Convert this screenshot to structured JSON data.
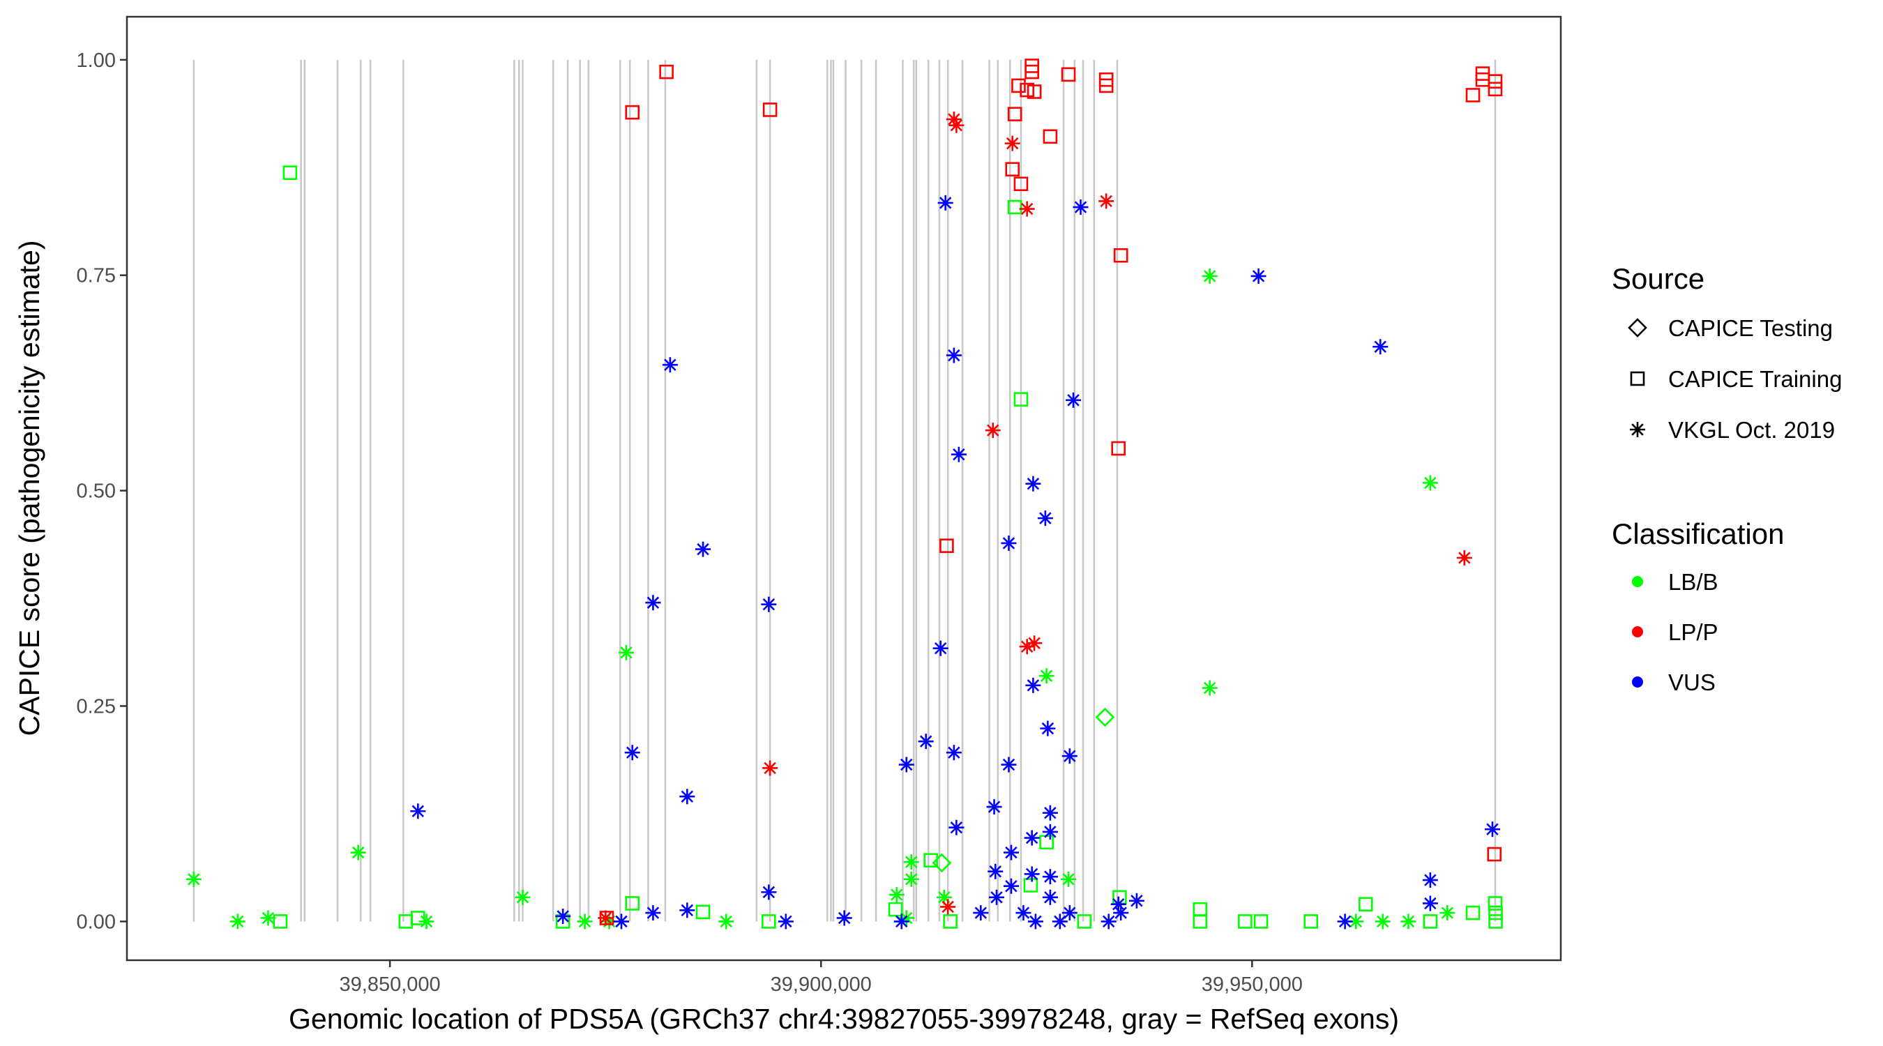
{
  "chart_data": {
    "type": "scatter",
    "xlabel": "Genomic location of PDS5A (GRCh37 chr4:39827055-39978248, gray = RefSeq exons)",
    "ylabel": "CAPICE score (pathogenicity estimate)",
    "xlim": [
      39819495,
      39985808
    ],
    "ylim": [
      -0.045,
      1.05
    ],
    "x_ticks": [
      39850000,
      39900000,
      39950000
    ],
    "x_tick_labels": [
      "39,850,000",
      "39,900,000",
      "39,950,000"
    ],
    "y_ticks": [
      0,
      0.25,
      0.5,
      0.75,
      1.0
    ],
    "y_tick_labels": [
      "0.00",
      "0.25",
      "0.50",
      "0.75",
      "1.00"
    ],
    "grid": false,
    "legend_position": "right",
    "legend": {
      "source_title": "Source",
      "sources": [
        {
          "key": "T",
          "label": "CAPICE Testing",
          "shape": "diamond"
        },
        {
          "key": "S",
          "label": "CAPICE Training",
          "shape": "square"
        },
        {
          "key": "V",
          "label": "VKGL Oct. 2019",
          "shape": "asterisk"
        }
      ],
      "class_title": "Classification",
      "classes": [
        {
          "key": "LB/B",
          "label": "LB/B",
          "color": "#00FF00"
        },
        {
          "key": "LP/P",
          "label": "LP/P",
          "color": "#FF0000"
        },
        {
          "key": "VUS",
          "label": "VUS",
          "color": "#0000FF"
        }
      ]
    },
    "exon_color": "#C8C8C8",
    "exons": [
      39827251,
      39839685,
      39840109,
      39843926,
      39846609,
      39847739,
      39851554,
      39864413,
      39864978,
      39865402,
      39868934,
      39870630,
      39872043,
      39873032,
      39876706,
      39877836,
      39879956,
      39881934,
      39892531,
      39894086,
      39900727,
      39901151,
      39901434,
      39902846,
      39904683,
      39906379,
      39909487,
      39910759,
      39911042,
      39912455,
      39913727,
      39914716,
      39916411,
      39919520,
      39920509,
      39921922,
      39923193,
      39928139,
      39929411,
      39930400,
      39931671,
      39934356,
      39978200
    ],
    "point_fields": [
      "position",
      "score",
      "source",
      "classification"
    ],
    "points": [
      [
        39827251,
        0.049,
        "V",
        "LB/B"
      ],
      [
        39832338,
        0.0,
        "V",
        "LB/B"
      ],
      [
        39835870,
        0.004,
        "V",
        "LB/B"
      ],
      [
        39837283,
        0.0,
        "S",
        "LB/B"
      ],
      [
        39838413,
        0.869,
        "S",
        "LB/B"
      ],
      [
        39846326,
        0.08,
        "V",
        "LB/B"
      ],
      [
        39851837,
        0.0,
        "S",
        "LB/B"
      ],
      [
        39853250,
        0.004,
        "S",
        "LB/B"
      ],
      [
        39854239,
        0.0,
        "V",
        "LB/B"
      ],
      [
        39865402,
        0.028,
        "V",
        "LB/B"
      ],
      [
        39870065,
        0.0,
        "S",
        "LB/B"
      ],
      [
        39872608,
        0.0,
        "V",
        "LB/B"
      ],
      [
        39875434,
        0.0,
        "V",
        "LB/B"
      ],
      [
        39877412,
        0.312,
        "V",
        "LB/B"
      ],
      [
        39878119,
        0.021,
        "S",
        "LB/B"
      ],
      [
        39886314,
        0.011,
        "S",
        "LB/B"
      ],
      [
        39888999,
        0.0,
        "V",
        "LB/B"
      ],
      [
        39893944,
        0.0,
        "S",
        "LB/B"
      ],
      [
        39908640,
        0.014,
        "S",
        "LB/B"
      ],
      [
        39908781,
        0.031,
        "V",
        "LB/B"
      ],
      [
        39909912,
        0.004,
        "V",
        "LB/B"
      ],
      [
        39910477,
        0.069,
        "V",
        "LB/B"
      ],
      [
        39910477,
        0.049,
        "V",
        "LB/B"
      ],
      [
        39912737,
        0.071,
        "S",
        "LB/B"
      ],
      [
        39914009,
        0.068,
        "T",
        "LB/B"
      ],
      [
        39914292,
        0.028,
        "V",
        "LB/B"
      ],
      [
        39914998,
        0.0,
        "S",
        "LB/B"
      ],
      [
        39922487,
        0.829,
        "S",
        "LB/B"
      ],
      [
        39923193,
        0.606,
        "S",
        "LB/B"
      ],
      [
        39924324,
        0.042,
        "S",
        "LB/B"
      ],
      [
        39926160,
        0.285,
        "V",
        "LB/B"
      ],
      [
        39926160,
        0.092,
        "S",
        "LB/B"
      ],
      [
        39928704,
        0.049,
        "V",
        "LB/B"
      ],
      [
        39930541,
        0.0,
        "S",
        "LB/B"
      ],
      [
        39932943,
        0.237,
        "T",
        "LB/B"
      ],
      [
        39934638,
        0.028,
        "S",
        "LB/B"
      ],
      [
        39943965,
        0.014,
        "S",
        "LB/B"
      ],
      [
        39943965,
        0.0,
        "S",
        "LB/B"
      ],
      [
        39945095,
        0.749,
        "V",
        "LB/B"
      ],
      [
        39945095,
        0.271,
        "V",
        "LB/B"
      ],
      [
        39949193,
        0.0,
        "S",
        "LB/B"
      ],
      [
        39951030,
        0.0,
        "S",
        "LB/B"
      ],
      [
        39956823,
        0.0,
        "S",
        "LB/B"
      ],
      [
        39962051,
        0.0,
        "V",
        "LB/B"
      ],
      [
        39963181,
        0.02,
        "S",
        "LB/B"
      ],
      [
        39965160,
        0.0,
        "V",
        "LB/B"
      ],
      [
        39968127,
        0.0,
        "V",
        "LB/B"
      ],
      [
        39970670,
        0.509,
        "V",
        "LB/B"
      ],
      [
        39970670,
        0.0,
        "S",
        "LB/B"
      ],
      [
        39972648,
        0.01,
        "V",
        "LB/B"
      ],
      [
        39975616,
        0.01,
        "S",
        "LB/B"
      ],
      [
        39978200,
        0.021,
        "S",
        "LB/B"
      ],
      [
        39978248,
        0.01,
        "S",
        "LB/B"
      ],
      [
        39978248,
        0.0,
        "S",
        "LB/B"
      ],
      [
        39882075,
        0.986,
        "S",
        "LP/P"
      ],
      [
        39878119,
        0.939,
        "S",
        "LP/P"
      ],
      [
        39894086,
        0.942,
        "S",
        "LP/P"
      ],
      [
        39914575,
        0.436,
        "S",
        "LP/P"
      ],
      [
        39922487,
        0.937,
        "S",
        "LP/P"
      ],
      [
        39922911,
        0.97,
        "S",
        "LP/P"
      ],
      [
        39922204,
        0.873,
        "S",
        "LP/P"
      ],
      [
        39923193,
        0.856,
        "S",
        "LP/P"
      ],
      [
        39923900,
        0.965,
        "S",
        "LP/P"
      ],
      [
        39924465,
        0.993,
        "S",
        "LP/P"
      ],
      [
        39924465,
        0.986,
        "S",
        "LP/P"
      ],
      [
        39924748,
        0.963,
        "S",
        "LP/P"
      ],
      [
        39926585,
        0.911,
        "S",
        "LP/P"
      ],
      [
        39928704,
        0.983,
        "S",
        "LP/P"
      ],
      [
        39933084,
        0.977,
        "S",
        "LP/P"
      ],
      [
        39933084,
        0.97,
        "S",
        "LP/P"
      ],
      [
        39934780,
        0.773,
        "S",
        "LP/P"
      ],
      [
        39934497,
        0.549,
        "S",
        "LP/P"
      ],
      [
        39975616,
        0.959,
        "S",
        "LP/P"
      ],
      [
        39976746,
        0.984,
        "S",
        "LP/P"
      ],
      [
        39976746,
        0.977,
        "S",
        "LP/P"
      ],
      [
        39978200,
        0.975,
        "S",
        "LP/P"
      ],
      [
        39978200,
        0.966,
        "S",
        "LP/P"
      ],
      [
        39978100,
        0.078,
        "S",
        "LP/P"
      ],
      [
        39875151,
        0.004,
        "S",
        "LP/P"
      ],
      [
        39915422,
        0.931,
        "V",
        "LP/P"
      ],
      [
        39915705,
        0.924,
        "V",
        "LP/P"
      ],
      [
        39922204,
        0.903,
        "V",
        "LP/P"
      ],
      [
        39919944,
        0.57,
        "V",
        "LP/P"
      ],
      [
        39923900,
        0.827,
        "V",
        "LP/P"
      ],
      [
        39933084,
        0.836,
        "V",
        "LP/P"
      ],
      [
        39894086,
        0.178,
        "V",
        "LP/P"
      ],
      [
        39923900,
        0.319,
        "V",
        "LP/P"
      ],
      [
        39924748,
        0.323,
        "V",
        "LP/P"
      ],
      [
        39974627,
        0.422,
        "V",
        "LP/P"
      ],
      [
        39914716,
        0.017,
        "V",
        "LP/P"
      ],
      [
        39875010,
        0.004,
        "V",
        "LP/P"
      ],
      [
        39853250,
        0.128,
        "V",
        "VUS"
      ],
      [
        39870065,
        0.006,
        "V",
        "VUS"
      ],
      [
        39876847,
        0.0,
        "V",
        "VUS"
      ],
      [
        39878119,
        0.196,
        "V",
        "VUS"
      ],
      [
        39880521,
        0.37,
        "V",
        "VUS"
      ],
      [
        39880521,
        0.01,
        "V",
        "VUS"
      ],
      [
        39882499,
        0.646,
        "V",
        "VUS"
      ],
      [
        39884477,
        0.145,
        "V",
        "VUS"
      ],
      [
        39884477,
        0.013,
        "V",
        "VUS"
      ],
      [
        39886314,
        0.432,
        "V",
        "VUS"
      ],
      [
        39893944,
        0.368,
        "V",
        "VUS"
      ],
      [
        39893944,
        0.034,
        "V",
        "VUS"
      ],
      [
        39895923,
        0.0,
        "V",
        "VUS"
      ],
      [
        39902705,
        0.004,
        "V",
        "VUS"
      ],
      [
        39909912,
        0.182,
        "V",
        "VUS"
      ],
      [
        39909347,
        0.0,
        "V",
        "VUS"
      ],
      [
        39912172,
        0.209,
        "V",
        "VUS"
      ],
      [
        39913868,
        0.317,
        "V",
        "VUS"
      ],
      [
        39914434,
        0.834,
        "V",
        "VUS"
      ],
      [
        39915422,
        0.657,
        "V",
        "VUS"
      ],
      [
        39915422,
        0.196,
        "V",
        "VUS"
      ],
      [
        39915705,
        0.109,
        "V",
        "VUS"
      ],
      [
        39915987,
        0.542,
        "V",
        "VUS"
      ],
      [
        39920085,
        0.133,
        "V",
        "VUS"
      ],
      [
        39920226,
        0.058,
        "V",
        "VUS"
      ],
      [
        39920367,
        0.028,
        "V",
        "VUS"
      ],
      [
        39921780,
        0.182,
        "V",
        "VUS"
      ],
      [
        39921780,
        0.439,
        "V",
        "VUS"
      ],
      [
        39922063,
        0.08,
        "V",
        "VUS"
      ],
      [
        39922063,
        0.041,
        "V",
        "VUS"
      ],
      [
        39924606,
        0.508,
        "V",
        "VUS"
      ],
      [
        39924606,
        0.274,
        "V",
        "VUS"
      ],
      [
        39924465,
        0.097,
        "V",
        "VUS"
      ],
      [
        39924465,
        0.055,
        "V",
        "VUS"
      ],
      [
        39926019,
        0.468,
        "V",
        "VUS"
      ],
      [
        39926302,
        0.224,
        "V",
        "VUS"
      ],
      [
        39926585,
        0.126,
        "V",
        "VUS"
      ],
      [
        39926585,
        0.104,
        "V",
        "VUS"
      ],
      [
        39926585,
        0.052,
        "V",
        "VUS"
      ],
      [
        39926585,
        0.028,
        "V",
        "VUS"
      ],
      [
        39928845,
        0.192,
        "V",
        "VUS"
      ],
      [
        39929269,
        0.605,
        "V",
        "VUS"
      ],
      [
        39930117,
        0.829,
        "V",
        "VUS"
      ],
      [
        39928845,
        0.01,
        "V",
        "VUS"
      ],
      [
        39934497,
        0.02,
        "V",
        "VUS"
      ],
      [
        39936617,
        0.024,
        "V",
        "VUS"
      ],
      [
        39933367,
        0.0,
        "V",
        "VUS"
      ],
      [
        39934780,
        0.01,
        "V",
        "VUS"
      ],
      [
        39950747,
        0.749,
        "V",
        "VUS"
      ],
      [
        39960779,
        0.0,
        "V",
        "VUS"
      ],
      [
        39964877,
        0.667,
        "V",
        "VUS"
      ],
      [
        39970670,
        0.048,
        "V",
        "VUS"
      ],
      [
        39970670,
        0.021,
        "V",
        "VUS"
      ],
      [
        39977877,
        0.107,
        "V",
        "VUS"
      ],
      [
        39923476,
        0.01,
        "V",
        "VUS"
      ],
      [
        39924889,
        0.0,
        "V",
        "VUS"
      ],
      [
        39927715,
        0.0,
        "V",
        "VUS"
      ],
      [
        39918531,
        0.01,
        "V",
        "VUS"
      ]
    ]
  }
}
